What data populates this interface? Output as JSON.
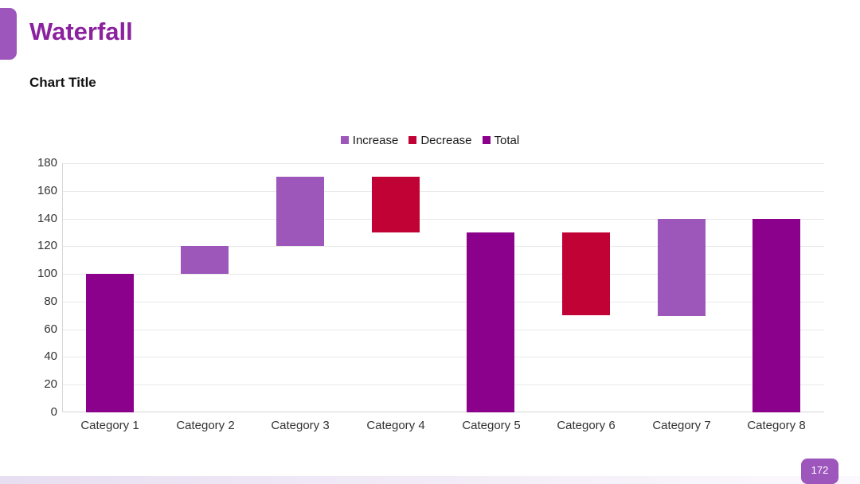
{
  "slide": {
    "title": "Waterfall",
    "page_number": "172"
  },
  "colors": {
    "accent": "#9c56bc",
    "title_text": "#8b219e",
    "increase": "#9d57ba",
    "decrease": "#c00334",
    "total": "#8b018b",
    "gridline": "#e9e9e9",
    "axis_line": "#d8d8d8",
    "footer_strip_left": "#e8def1",
    "footer_strip_right": "#fbf9fd"
  },
  "chart_data": {
    "type": "bar",
    "subtype": "waterfall",
    "title": "Chart Title",
    "categories": [
      "Category 1",
      "Category 2",
      "Category 3",
      "Category 4",
      "Category 5",
      "Category 6",
      "Category 7",
      "Category 8"
    ],
    "legend": [
      {
        "label": "Increase",
        "series": "increase"
      },
      {
        "label": "Decrease",
        "series": "decrease"
      },
      {
        "label": "Total",
        "series": "total"
      }
    ],
    "legend_position": "top-center",
    "grid": true,
    "ylim": [
      0,
      180
    ],
    "yticks": [
      0,
      20,
      40,
      60,
      80,
      100,
      120,
      140,
      160,
      180
    ],
    "bars": [
      {
        "category": "Category 1",
        "type": "total",
        "from": 0,
        "to": 100,
        "value": 100
      },
      {
        "category": "Category 2",
        "type": "increase",
        "from": 100,
        "to": 120,
        "value": 20
      },
      {
        "category": "Category 3",
        "type": "increase",
        "from": 120,
        "to": 170,
        "value": 50
      },
      {
        "category": "Category 4",
        "type": "decrease",
        "from": 130,
        "to": 170,
        "value": -40
      },
      {
        "category": "Category 5",
        "type": "total",
        "from": 0,
        "to": 130,
        "value": 130
      },
      {
        "category": "Category 6",
        "type": "decrease",
        "from": 70,
        "to": 130,
        "value": -60
      },
      {
        "category": "Category 7",
        "type": "increase",
        "from": 70,
        "to": 140,
        "value": 70
      },
      {
        "category": "Category 8",
        "type": "total",
        "from": 0,
        "to": 140,
        "value": 140
      }
    ]
  }
}
